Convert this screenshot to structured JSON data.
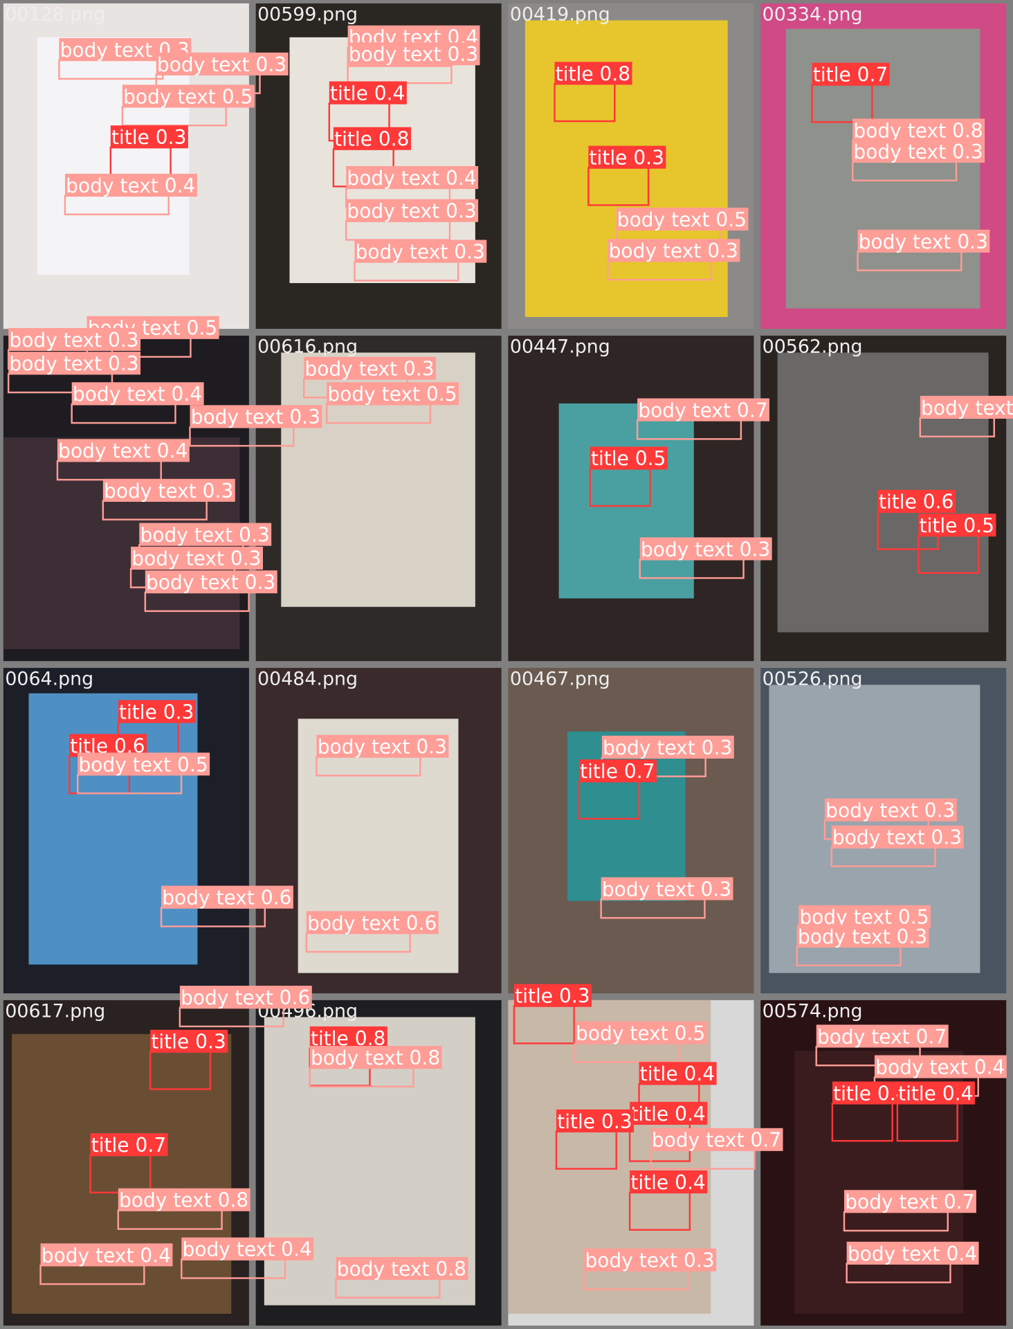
{
  "tiles": [
    {
      "filename": "00128.png",
      "detections": [
        "body text 0.3",
        "body text 0.3",
        "body text 0.5",
        "title 0.3",
        "body text 0.4"
      ]
    },
    {
      "filename": "00599.png",
      "detections": [
        "body text 0.4",
        "body text 0.3",
        "title 0.4",
        "title 0.8",
        "body text 0.4",
        "body text 0.3",
        "body text 0.3"
      ]
    },
    {
      "filename": "00419.png",
      "detections": [
        "title 0.8",
        "title 0.3",
        "body text 0.5",
        "body text 0.3"
      ]
    },
    {
      "filename": "00334.png",
      "detections": [
        "title 0.7",
        "body text 0.8",
        "body text 0.3",
        "body text 0.3"
      ]
    },
    {
      "detections": [
        "body text 0.5",
        "body text 0.3",
        "body text 0.3",
        "body text 0.4",
        "body text 0.3",
        "body text 0.4",
        "body text 0.3",
        "body text 0.3",
        "body text 0.3",
        "body text 0.3"
      ]
    },
    {
      "filename": "00616.png",
      "detections": [
        "body text 0.3",
        "body text 0.5"
      ]
    },
    {
      "filename": "00447.png",
      "detections": [
        "body text 0.7",
        "title 0.5",
        "body text 0.3"
      ]
    },
    {
      "filename": "00562.png",
      "detections": [
        "body text",
        "title 0.6",
        "title 0.5"
      ]
    },
    {
      "filename": "0064.png",
      "detections": [
        "title 0.3",
        "title 0.6",
        "body text 0.5",
        "body text 0.6"
      ]
    },
    {
      "filename": "00484.png",
      "detections": [
        "body text 0.3",
        "body text 0.6"
      ]
    },
    {
      "filename": "00467.png",
      "detections": [
        "body text 0.3",
        "title 0.7",
        "body text 0.3"
      ]
    },
    {
      "filename": "00526.png",
      "detections": [
        "body text 0.3",
        "body text 0.3",
        "body text 0.5",
        "body text 0.3"
      ]
    },
    {
      "filename": "00617.png",
      "detections": [
        "body text 0.6",
        "title 0.3",
        "title 0.7",
        "body text 0.8",
        "body text 0.4",
        "body text 0.4"
      ]
    },
    {
      "filename": "00496.png",
      "detections": [
        "title 0.8",
        "body text 0.8",
        "body text 0.8"
      ]
    },
    {
      "detections": [
        "title 0.3",
        "body text 0.5",
        "title 0.4",
        "title 0.4",
        "title 0.3",
        "body text 0.7",
        "title 0.4",
        "body text 0.3"
      ]
    },
    {
      "filename": "00574.png",
      "detections": [
        "body text 0.7",
        "body text 0.4",
        "title 0.4",
        "title 0.4",
        "body text 0.7",
        "body text 0.4"
      ]
    }
  ]
}
